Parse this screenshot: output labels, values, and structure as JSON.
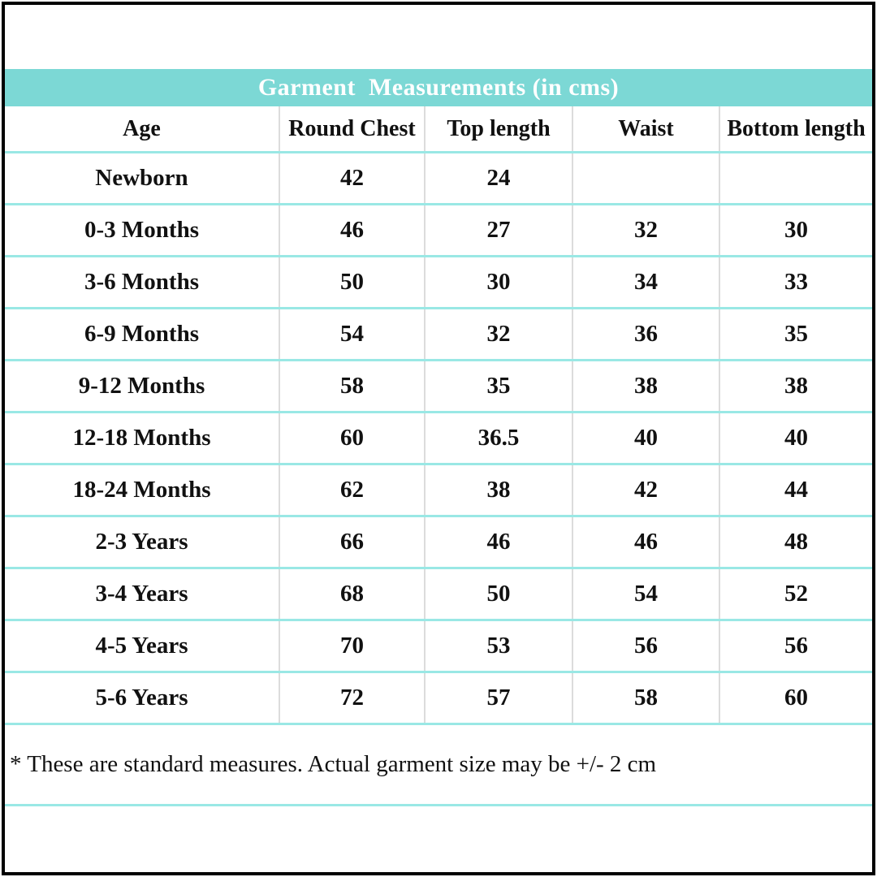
{
  "table": {
    "title": "Garment  Measurements (in cms)",
    "columns": [
      "Age",
      "Round Chest",
      "Top length",
      "Waist",
      "Bottom length"
    ],
    "rows": [
      [
        "Newborn",
        "42",
        "24",
        "",
        ""
      ],
      [
        "0-3 Months",
        "46",
        "27",
        "32",
        "30"
      ],
      [
        "3-6 Months",
        "50",
        "30",
        "34",
        "33"
      ],
      [
        "6-9 Months",
        "54",
        "32",
        "36",
        "35"
      ],
      [
        "9-12 Months",
        "58",
        "35",
        "38",
        "38"
      ],
      [
        "12-18 Months",
        "60",
        "36.5",
        "40",
        "40"
      ],
      [
        "18-24 Months",
        "62",
        "38",
        "42",
        "44"
      ],
      [
        "2-3 Years",
        "66",
        "46",
        "46",
        "48"
      ],
      [
        "3-4 Years",
        "68",
        "50",
        "54",
        "52"
      ],
      [
        "4-5 Years",
        "70",
        "53",
        "56",
        "56"
      ],
      [
        "5-6 Years",
        "72",
        "57",
        "58",
        "60"
      ]
    ]
  },
  "footnote": "* These are standard measures. Actual garment size may be +/- 2 cm",
  "colors": {
    "header_bg": "#7cd8d5",
    "header_text": "#ffffff",
    "row_divider": "#9ae8e5",
    "column_divider": "#dcdcdc",
    "text": "#111111",
    "border": "#000000"
  }
}
